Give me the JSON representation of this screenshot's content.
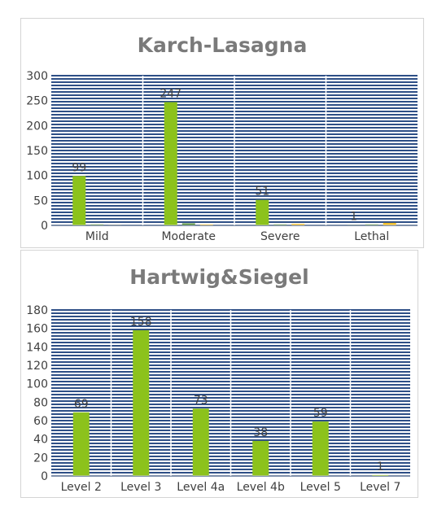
{
  "chart_data": [
    {
      "type": "bar",
      "title": "Karch-Lasagna",
      "categories": [
        "Mild",
        "Moderate",
        "Severe",
        "Lethal"
      ],
      "series": [
        {
          "values": [
            99,
            247,
            51,
            1
          ],
          "color": "#8cc21c",
          "labels": [
            "99",
            "247",
            "51",
            "1"
          ]
        },
        {
          "values": [
            2,
            4,
            2,
            2
          ],
          "color": "#4f8a3a"
        },
        {
          "values": [
            1,
            2,
            3,
            5
          ],
          "color": "#f2c12e"
        }
      ],
      "ylim": [
        0,
        300
      ],
      "yticks": [
        0,
        50,
        100,
        150,
        200,
        250,
        300
      ],
      "grid": true,
      "background": "#2e4f86"
    },
    {
      "type": "bar",
      "title": "Hartwig&Siegel",
      "categories": [
        "Level 2",
        "Level 3",
        "Level 4a",
        "Level 4b",
        "Level 5",
        "Level 7"
      ],
      "series": [
        {
          "values": [
            69,
            158,
            73,
            38,
            59,
            1
          ],
          "color": "#8cc21c",
          "labels": [
            "69",
            "158",
            "73",
            "38",
            "59",
            "1"
          ]
        }
      ],
      "ylim": [
        0,
        180
      ],
      "yticks": [
        0,
        20,
        40,
        60,
        80,
        100,
        120,
        140,
        160,
        180
      ],
      "grid": true,
      "background": "#2e4f86"
    }
  ]
}
